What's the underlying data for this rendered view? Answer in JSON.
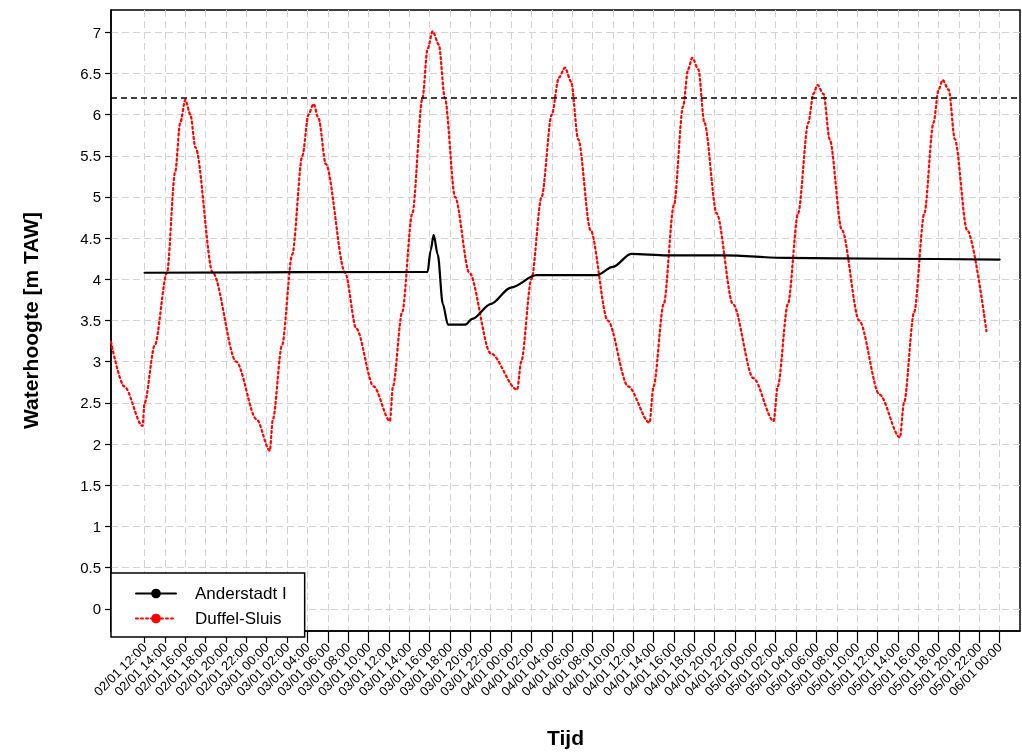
{
  "chart_data": {
    "type": "line",
    "xlabel": "Tijd",
    "ylabel": "Waterhoogte [m TAW]",
    "series": [
      {
        "name": "Anderstadt I",
        "color": "#000000",
        "line_style": "solid",
        "x": [
          "--01-02T12:00",
          "--01-03T15:48",
          "--01-03T16:06",
          "--01-03T16:24",
          "--01-03T16:48",
          "--01-03T17:18",
          "--01-03T17:48",
          "--01-03T19:30",
          "--01-03T20:12",
          "--01-03T22:00",
          "--01-04T00:00",
          "--01-04T02:30",
          "--01-04T08:24",
          "--01-04T10:00",
          "--01-04T11:48",
          "--01-04T15:18",
          "--01-04T21:00",
          "--01-05T03:06",
          "--01-05T13:00",
          "--01-06T00:00"
        ],
        "values": [
          4.08,
          4.09,
          4.35,
          4.54,
          4.3,
          3.7,
          3.45,
          3.45,
          3.52,
          3.7,
          3.9,
          4.05,
          4.05,
          4.15,
          4.31,
          4.29,
          4.29,
          4.26,
          4.25,
          4.24
        ]
      },
      {
        "name": "Duffel-Sluis",
        "color": "#ff0000",
        "line_style": "dotted",
        "x": [
          "--01-02T08:42",
          "--01-02T10:00",
          "--01-02T11:48",
          "--01-02T12:00",
          "--01-02T13:00",
          "--01-02T14:12",
          "--01-02T15:00",
          "--01-02T15:30",
          "--01-02T16:00",
          "--01-02T16:30",
          "--01-02T17:00",
          "--01-02T18:42",
          "--01-02T21:00",
          "--01-02T23:00",
          "--01-03T00:18",
          "--01-03T00:36",
          "--01-03T01:30",
          "--01-03T02:30",
          "--01-03T03:30",
          "--01-03T04:06",
          "--01-03T04:36",
          "--01-03T05:06",
          "--01-03T05:48",
          "--01-03T07:42",
          "--01-03T08:48",
          "--01-03T10:30",
          "--01-03T12:06",
          "--01-03T12:24",
          "--01-03T13:18",
          "--01-03T14:18",
          "--01-03T15:18",
          "--01-03T15:48",
          "--01-03T16:18",
          "--01-03T16:54",
          "--01-03T17:30",
          "--01-03T18:30",
          "--01-03T19:54",
          "--01-03T22:00",
          "--01-04T00:36",
          "--01-04T01:00",
          "--01-04T02:00",
          "--01-04T03:00",
          "--01-04T04:00",
          "--01-04T04:42",
          "--01-04T05:18",
          "--01-04T05:54",
          "--01-04T06:36",
          "--01-04T07:48",
          "--01-04T09:30",
          "--01-04T11:30",
          "--01-04T13:36",
          "--01-04T14:00",
          "--01-04T15:00",
          "--01-04T16:00",
          "--01-04T16:54",
          "--01-04T17:24",
          "--01-04T17:48",
          "--01-04T18:24",
          "--01-04T19:00",
          "--01-04T20:12",
          "--01-04T21:48",
          "--01-04T23:48",
          "--01-05T01:48",
          "--01-05T02:12",
          "--01-05T03:12",
          "--01-05T04:12",
          "--01-05T05:12",
          "--01-05T05:42",
          "--01-05T06:06",
          "--01-05T06:42",
          "--01-05T07:18",
          "--01-05T08:30",
          "--01-05T10:12",
          "--01-05T12:12",
          "--01-05T14:12",
          "--01-05T14:36",
          "--01-05T15:36",
          "--01-05T16:36",
          "--01-05T17:30",
          "--01-05T18:00",
          "--01-05T18:24",
          "--01-05T19:00",
          "--01-05T19:36",
          "--01-05T20:48",
          "--01-05T22:42"
        ],
        "values": [
          3.24,
          2.7,
          2.22,
          2.5,
          3.2,
          4.08,
          5.3,
          5.9,
          6.18,
          6.0,
          5.6,
          4.08,
          3.0,
          2.3,
          1.92,
          2.3,
          3.2,
          4.3,
          5.5,
          6.0,
          6.13,
          5.95,
          5.4,
          4.08,
          3.4,
          2.7,
          2.28,
          2.7,
          3.6,
          4.8,
          6.2,
          6.8,
          7.01,
          6.85,
          6.2,
          5.0,
          4.08,
          3.1,
          2.66,
          3.0,
          4.0,
          5.0,
          6.0,
          6.45,
          6.57,
          6.4,
          5.7,
          4.6,
          3.5,
          2.7,
          2.26,
          2.7,
          3.7,
          4.9,
          6.1,
          6.55,
          6.69,
          6.55,
          5.9,
          4.8,
          3.7,
          2.8,
          2.28,
          2.7,
          3.7,
          4.8,
          5.9,
          6.25,
          6.36,
          6.25,
          5.7,
          4.6,
          3.5,
          2.6,
          2.08,
          2.5,
          3.6,
          4.8,
          5.9,
          6.3,
          6.42,
          6.3,
          5.7,
          4.6,
          3.37
        ]
      }
    ],
    "xlim": [
      "--01-02T08:42",
      "--01-06T02:00"
    ],
    "ylim": [
      -0.27,
      7.27
    ],
    "xticks": [
      {
        "value": "--01-02T12:00",
        "label": "02/01 12:00"
      },
      {
        "value": "--01-02T14:00",
        "label": "02/01 14:00"
      },
      {
        "value": "--01-02T16:00",
        "label": "02/01 16:00"
      },
      {
        "value": "--01-02T18:00",
        "label": "02/01 18:00"
      },
      {
        "value": "--01-02T20:00",
        "label": "02/01 20:00"
      },
      {
        "value": "--01-02T22:00",
        "label": "02/01 22:00"
      },
      {
        "value": "--01-03T00:00",
        "label": "03/01 00:00"
      },
      {
        "value": "--01-03T02:00",
        "label": "03/01 02:00"
      },
      {
        "value": "--01-03T04:00",
        "label": "03/01 04:00"
      },
      {
        "value": "--01-03T06:00",
        "label": "03/01 06:00"
      },
      {
        "value": "--01-03T08:00",
        "label": "03/01 08:00"
      },
      {
        "value": "--01-03T10:00",
        "label": "03/01 10:00"
      },
      {
        "value": "--01-03T12:00",
        "label": "03/01 12:00"
      },
      {
        "value": "--01-03T14:00",
        "label": "03/01 14:00"
      },
      {
        "value": "--01-03T16:00",
        "label": "03/01 16:00"
      },
      {
        "value": "--01-03T18:00",
        "label": "03/01 18:00"
      },
      {
        "value": "--01-03T20:00",
        "label": "03/01 20:00"
      },
      {
        "value": "--01-03T22:00",
        "label": "03/01 22:00"
      },
      {
        "value": "--01-04T00:00",
        "label": "04/01 00:00"
      },
      {
        "value": "--01-04T02:00",
        "label": "04/01 02:00"
      },
      {
        "value": "--01-04T04:00",
        "label": "04/01 04:00"
      },
      {
        "value": "--01-04T06:00",
        "label": "04/01 06:00"
      },
      {
        "value": "--01-04T08:00",
        "label": "04/01 08:00"
      },
      {
        "value": "--01-04T10:00",
        "label": "04/01 10:00"
      },
      {
        "value": "--01-04T12:00",
        "label": "04/01 12:00"
      },
      {
        "value": "--01-04T14:00",
        "label": "04/01 14:00"
      },
      {
        "value": "--01-04T16:00",
        "label": "04/01 16:00"
      },
      {
        "value": "--01-04T18:00",
        "label": "04/01 18:00"
      },
      {
        "value": "--01-04T20:00",
        "label": "04/01 20:00"
      },
      {
        "value": "--01-04T22:00",
        "label": "04/01 22:00"
      },
      {
        "value": "--01-05T00:00",
        "label": "05/01 00:00"
      },
      {
        "value": "--01-05T02:00",
        "label": "05/01 02:00"
      },
      {
        "value": "--01-05T04:00",
        "label": "05/01 04:00"
      },
      {
        "value": "--01-05T06:00",
        "label": "05/01 06:00"
      },
      {
        "value": "--01-05T08:00",
        "label": "05/01 08:00"
      },
      {
        "value": "--01-05T10:00",
        "label": "05/01 10:00"
      },
      {
        "value": "--01-05T12:00",
        "label": "05/01 12:00"
      },
      {
        "value": "--01-05T14:00",
        "label": "05/01 14:00"
      },
      {
        "value": "--01-05T16:00",
        "label": "05/01 16:00"
      },
      {
        "value": "--01-05T18:00",
        "label": "05/01 18:00"
      },
      {
        "value": "--01-05T20:00",
        "label": "05/01 20:00"
      },
      {
        "value": "--01-05T22:00",
        "label": "05/01 22:00"
      },
      {
        "value": "--01-06T00:00",
        "label": "06/01 00:00"
      }
    ],
    "yticks": [
      0,
      0.5,
      1,
      1.5,
      2,
      2.5,
      3,
      3.5,
      4,
      4.5,
      5,
      5.5,
      6,
      6.5,
      7
    ],
    "grid": true,
    "legend": "bottom left",
    "marker": "none",
    "ref_lines": [
      {
        "axis": "y",
        "value": 6.2,
        "color": "#000000",
        "line_style": "dashed"
      }
    ]
  }
}
